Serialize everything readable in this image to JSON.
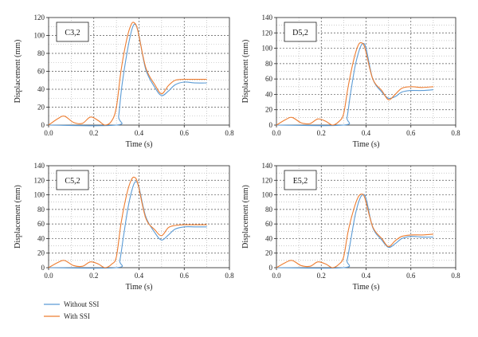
{
  "colors": {
    "without_ssi": "#5b9bd5",
    "with_ssi": "#ed7d31"
  },
  "legend": [
    {
      "label": "Without SSI",
      "color": "#5b9bd5"
    },
    {
      "label": "With SSI",
      "color": "#ed7d31"
    }
  ],
  "chart_data": [
    {
      "type": "line",
      "label": "C3,2",
      "xlabel": "Time (s)",
      "ylabel": "Displacement (mm)",
      "xlim": [
        0,
        0.8
      ],
      "ylim": [
        0,
        120
      ],
      "xticks": [
        "0.0",
        "0.2",
        "0.4",
        "0.6",
        "0.8"
      ],
      "yticks": [
        "0",
        "20",
        "40",
        "60",
        "80",
        "100",
        "120"
      ],
      "grid": true,
      "series": [
        {
          "name": "Without SSI",
          "x": [
            0.0,
            0.3,
            0.31,
            0.325,
            0.35,
            0.37,
            0.385,
            0.4,
            0.43,
            0.47,
            0.5,
            0.53,
            0.56,
            0.6,
            0.65,
            0.7
          ],
          "y": [
            0,
            0,
            10,
            45,
            85,
            108,
            112,
            100,
            62,
            42,
            33,
            38,
            45,
            48,
            47,
            47
          ]
        },
        {
          "name": "With SSI",
          "x": [
            0.0,
            0.04,
            0.07,
            0.11,
            0.15,
            0.185,
            0.22,
            0.25,
            0.28,
            0.3,
            0.32,
            0.345,
            0.365,
            0.38,
            0.395,
            0.43,
            0.47,
            0.5,
            0.53,
            0.56,
            0.6,
            0.65,
            0.7
          ],
          "y": [
            0,
            7,
            10,
            3,
            2,
            9,
            5,
            0,
            5,
            20,
            60,
            95,
            112,
            114,
            105,
            64,
            45,
            35,
            44,
            50,
            51,
            51,
            51
          ]
        }
      ]
    },
    {
      "type": "line",
      "label": "D5,2",
      "xlabel": "Time (s)",
      "ylabel": "Displacement (mm)",
      "xlim": [
        0,
        0.8
      ],
      "ylim": [
        0,
        140
      ],
      "xticks": [
        "0.0",
        "0.2",
        "0.4",
        "0.6",
        "0.8"
      ],
      "yticks": [
        "0",
        "20",
        "40",
        "60",
        "80",
        "100",
        "120",
        "140"
      ],
      "grid": true,
      "series": [
        {
          "name": "Without SSI",
          "x": [
            0.0,
            0.3,
            0.315,
            0.33,
            0.35,
            0.37,
            0.385,
            0.4,
            0.43,
            0.47,
            0.5,
            0.53,
            0.56,
            0.6,
            0.65,
            0.7
          ],
          "y": [
            0,
            0,
            10,
            40,
            75,
            98,
            106,
            100,
            60,
            43,
            35,
            37,
            43,
            45,
            45,
            46
          ]
        },
        {
          "name": "With SSI",
          "x": [
            0.0,
            0.04,
            0.07,
            0.11,
            0.15,
            0.185,
            0.22,
            0.25,
            0.28,
            0.3,
            0.32,
            0.345,
            0.365,
            0.38,
            0.395,
            0.43,
            0.47,
            0.5,
            0.53,
            0.56,
            0.6,
            0.65,
            0.7
          ],
          "y": [
            0,
            7,
            10,
            3,
            2,
            8,
            5,
            0,
            5,
            15,
            50,
            85,
            104,
            107,
            100,
            60,
            45,
            33,
            40,
            48,
            50,
            49,
            50
          ]
        }
      ]
    },
    {
      "type": "line",
      "label": "C5,2",
      "xlabel": "Time (s)",
      "ylabel": "Displacement (mm)",
      "xlim": [
        0,
        0.8
      ],
      "ylim": [
        0,
        140
      ],
      "xticks": [
        "0.0",
        "0.2",
        "0.4",
        "0.6",
        "0.8"
      ],
      "yticks": [
        "0",
        "20",
        "40",
        "60",
        "80",
        "100",
        "120",
        "140"
      ],
      "grid": true,
      "series": [
        {
          "name": "Without SSI",
          "x": [
            0.0,
            0.3,
            0.315,
            0.33,
            0.35,
            0.37,
            0.385,
            0.4,
            0.43,
            0.47,
            0.5,
            0.53,
            0.56,
            0.6,
            0.65,
            0.7
          ],
          "y": [
            0,
            0,
            10,
            40,
            80,
            108,
            118,
            110,
            70,
            48,
            38,
            45,
            53,
            56,
            56,
            56
          ]
        },
        {
          "name": "With SSI",
          "x": [
            0.0,
            0.04,
            0.07,
            0.11,
            0.15,
            0.185,
            0.22,
            0.25,
            0.28,
            0.3,
            0.32,
            0.345,
            0.365,
            0.38,
            0.395,
            0.43,
            0.47,
            0.5,
            0.53,
            0.56,
            0.6,
            0.65,
            0.7
          ],
          "y": [
            0,
            7,
            10,
            3,
            2,
            8,
            5,
            0,
            5,
            15,
            60,
            100,
            120,
            124,
            115,
            68,
            52,
            44,
            55,
            58,
            59,
            59,
            59
          ]
        }
      ]
    },
    {
      "type": "line",
      "label": "E5,2",
      "xlabel": "Time (s)",
      "ylabel": "Displacement (mm)",
      "xlim": [
        0,
        0.8
      ],
      "ylim": [
        0,
        140
      ],
      "xticks": [
        "0.0",
        "0.2",
        "0.4",
        "0.6",
        "0.8"
      ],
      "yticks": [
        "0",
        "20",
        "40",
        "60",
        "80",
        "100",
        "120",
        "140"
      ],
      "grid": true,
      "series": [
        {
          "name": "Without SSI",
          "x": [
            0.0,
            0.3,
            0.315,
            0.33,
            0.35,
            0.37,
            0.385,
            0.4,
            0.43,
            0.47,
            0.5,
            0.53,
            0.56,
            0.6,
            0.65,
            0.7
          ],
          "y": [
            0,
            0,
            10,
            35,
            70,
            93,
            100,
            95,
            55,
            38,
            28,
            33,
            40,
            43,
            42,
            42
          ]
        },
        {
          "name": "With SSI",
          "x": [
            0.0,
            0.04,
            0.07,
            0.11,
            0.15,
            0.185,
            0.22,
            0.25,
            0.28,
            0.3,
            0.32,
            0.345,
            0.365,
            0.38,
            0.395,
            0.43,
            0.47,
            0.5,
            0.53,
            0.56,
            0.6,
            0.65,
            0.7
          ],
          "y": [
            0,
            7,
            10,
            3,
            2,
            8,
            5,
            0,
            5,
            15,
            50,
            80,
            97,
            101,
            95,
            56,
            40,
            29,
            37,
            43,
            45,
            45,
            46
          ]
        }
      ]
    }
  ]
}
